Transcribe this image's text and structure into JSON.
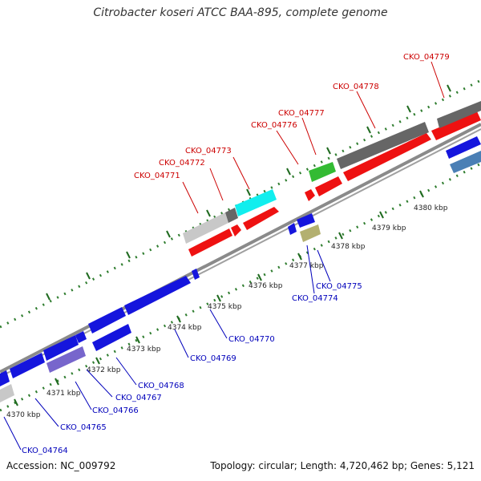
{
  "title": "Citrobacter koseri ATCC BAA-895, complete genome",
  "footer": {
    "accession": "Accession: NC_009792",
    "summary": "Topology: circular; Length: 4,720,462 bp; Genes: 5,121"
  },
  "colors": {
    "backbone": "#8a8a8a",
    "ticks": "#2f7d2f",
    "label_forward": "#cc0000",
    "label_reverse": "#0000bb",
    "red": "#ee1111",
    "blue": "#1515dd",
    "gray": "#666666",
    "light_gray": "#c8c8c8",
    "cyan": "#11eeee",
    "green": "#33bb33",
    "purple": "#7766cc",
    "khaki": "#b3b070",
    "steel_blue": "#4a7fb5"
  },
  "scale": {
    "unit": "kbp",
    "ticks": [
      "4370 kbp",
      "4371 kbp",
      "4372 kbp",
      "4373 kbp",
      "4374 kbp",
      "4375 kbp",
      "4376 kbp",
      "4377 kbp",
      "4378 kbp",
      "4379 kbp",
      "4380 kbp"
    ]
  },
  "forward_labels": [
    "CKO_04771",
    "CKO_04772",
    "CKO_04773",
    "CKO_04776",
    "CKO_04777",
    "CKO_04778",
    "CKO_04779"
  ],
  "reverse_labels": [
    "CKO_04764",
    "CKO_04765",
    "CKO_04766",
    "CKO_04767",
    "CKO_04768",
    "CKO_04769",
    "CKO_04770",
    "CKO_04774",
    "CKO_04775"
  ]
}
